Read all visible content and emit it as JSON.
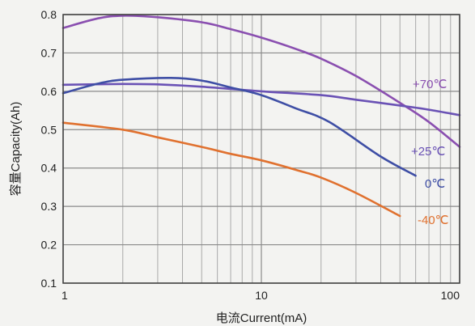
{
  "chart_data": {
    "type": "line",
    "xlabel": "电流Current(mA)",
    "ylabel": "容量Capacity(Ah)",
    "x_scale": "log",
    "xlim": [
      1,
      100
    ],
    "ylim": [
      0.1,
      0.8
    ],
    "x_ticks": [
      {
        "value": 1,
        "label": "1"
      },
      {
        "value": 10,
        "label": "10"
      },
      {
        "value": 100,
        "label": "100"
      }
    ],
    "y_ticks": [
      {
        "value": 0.1,
        "label": "0.1"
      },
      {
        "value": 0.2,
        "label": "0.2"
      },
      {
        "value": 0.3,
        "label": "0.3"
      },
      {
        "value": 0.4,
        "label": "0.4"
      },
      {
        "value": 0.5,
        "label": "0.5"
      },
      {
        "value": 0.6,
        "label": "0.6"
      },
      {
        "value": 0.7,
        "label": "0.7"
      },
      {
        "value": 0.8,
        "label": "0.8"
      }
    ],
    "grid": true,
    "series": [
      {
        "name": "+70℃",
        "color": "#8a4fb0",
        "points": [
          [
            1,
            0.765
          ],
          [
            1.5,
            0.79
          ],
          [
            2,
            0.797
          ],
          [
            3,
            0.793
          ],
          [
            5,
            0.78
          ],
          [
            7,
            0.762
          ],
          [
            10,
            0.74
          ],
          [
            15,
            0.71
          ],
          [
            20,
            0.685
          ],
          [
            30,
            0.64
          ],
          [
            50,
            0.57
          ],
          [
            70,
            0.52
          ],
          [
            100,
            0.455
          ]
        ]
      },
      {
        "name": "+25℃",
        "color": "#6a52b5",
        "points": [
          [
            1,
            0.617
          ],
          [
            2,
            0.619
          ],
          [
            3,
            0.618
          ],
          [
            5,
            0.612
          ],
          [
            10,
            0.6
          ],
          [
            20,
            0.59
          ],
          [
            30,
            0.578
          ],
          [
            50,
            0.563
          ],
          [
            70,
            0.552
          ],
          [
            100,
            0.538
          ]
        ]
      },
      {
        "name": "0℃",
        "color": "#3e4ea5",
        "points": [
          [
            1,
            0.595
          ],
          [
            1.5,
            0.62
          ],
          [
            2,
            0.63
          ],
          [
            3.5,
            0.635
          ],
          [
            5,
            0.628
          ],
          [
            7,
            0.61
          ],
          [
            10,
            0.59
          ],
          [
            15,
            0.555
          ],
          [
            22,
            0.52
          ],
          [
            40,
            0.43
          ],
          [
            60,
            0.38
          ]
        ]
      },
      {
        "name": "-40℃",
        "color": "#e0712f",
        "points": [
          [
            1,
            0.518
          ],
          [
            2,
            0.5
          ],
          [
            3,
            0.48
          ],
          [
            5,
            0.455
          ],
          [
            7,
            0.437
          ],
          [
            10,
            0.42
          ],
          [
            15,
            0.395
          ],
          [
            20,
            0.375
          ],
          [
            30,
            0.335
          ],
          [
            50,
            0.275
          ]
        ]
      }
    ]
  }
}
